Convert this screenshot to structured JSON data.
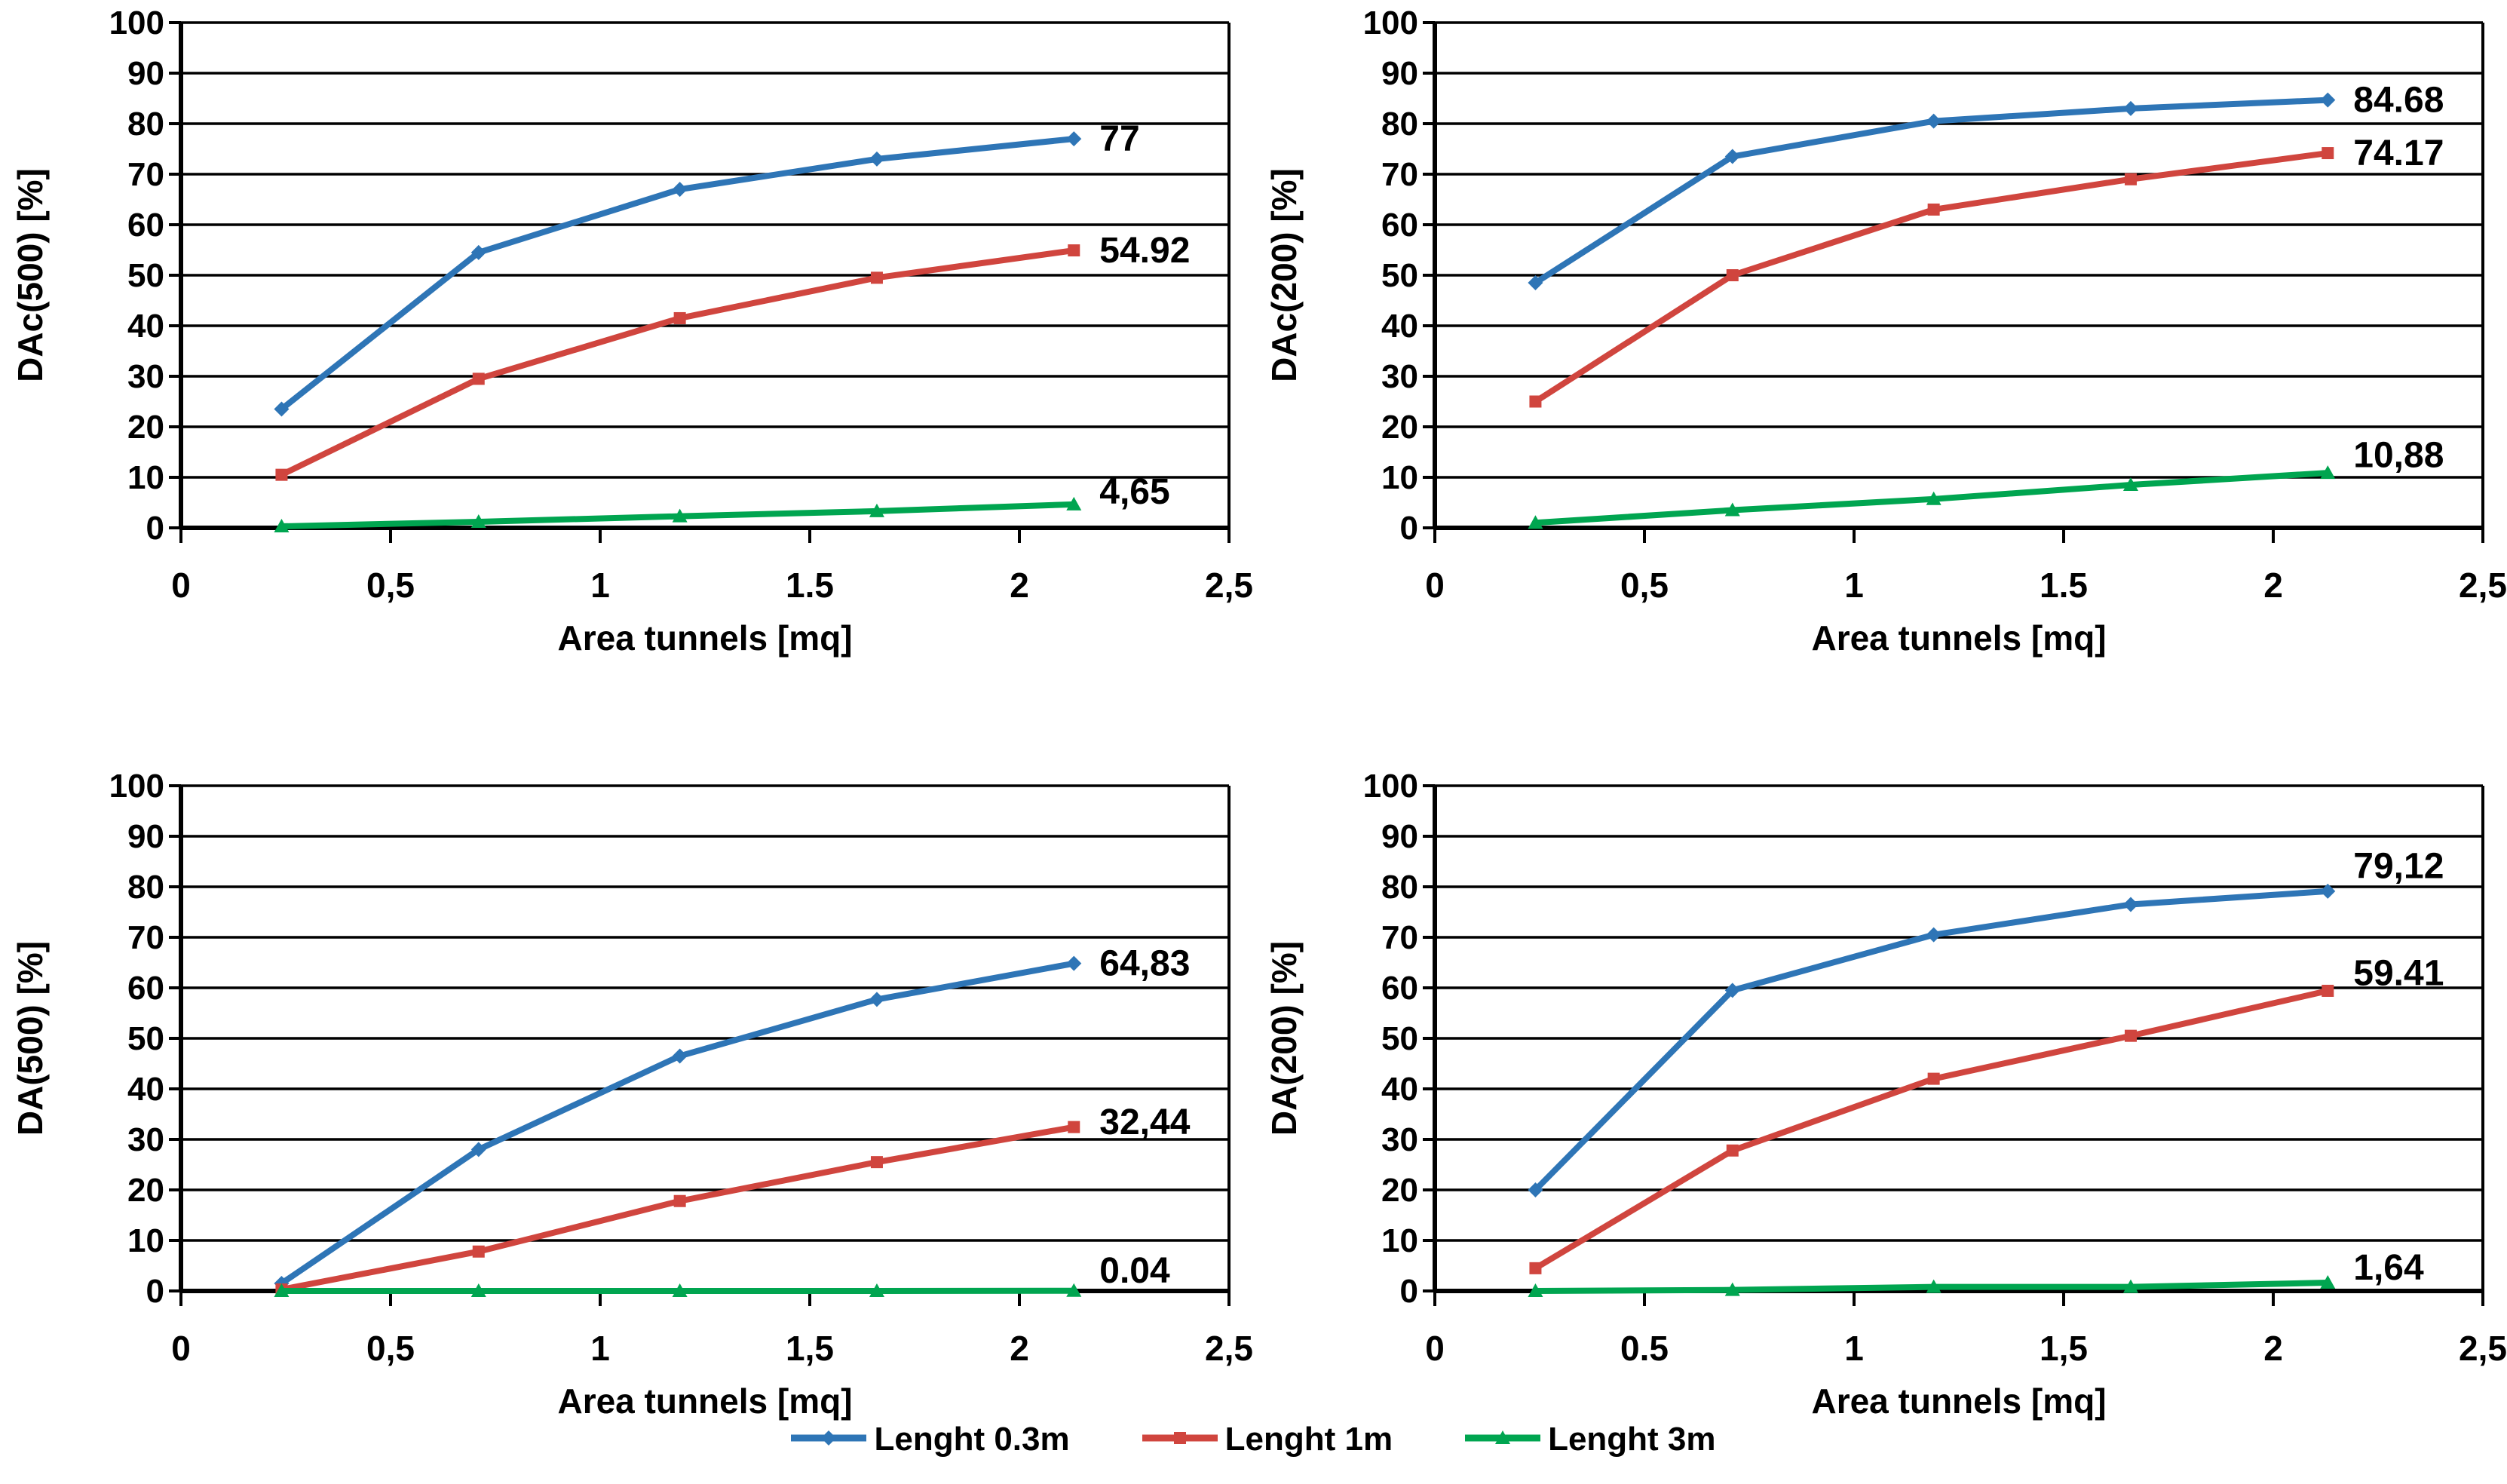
{
  "palette": {
    "blue": "#2E75B6",
    "red": "#D0453E",
    "green": "#00A550",
    "axis": "#000000",
    "grid": "#000000",
    "text": "#000000",
    "background": "#ffffff"
  },
  "legend": {
    "items": [
      {
        "label": "Lenght 0.3m",
        "color_key": "blue",
        "marker": "diamond"
      },
      {
        "label": "Lenght 1m",
        "color_key": "red",
        "marker": "square"
      },
      {
        "label": "Lenght 3m",
        "color_key": "green",
        "marker": "triangle"
      }
    ]
  },
  "chart_data": [
    {
      "type": "line",
      "name": "dac500",
      "ylabel": "DAc(500) [%]",
      "xlabel": "Area tunnels [mq]",
      "xlim": [
        0,
        2.5
      ],
      "ylim": [
        0,
        100
      ],
      "grid": "horizontal",
      "legend_position": "shared-bottom",
      "xtick_values": [
        0,
        0.5,
        1,
        1.5,
        2,
        2.5
      ],
      "xtick_labels": [
        "0",
        "0,5",
        "1",
        "1.5",
        "2",
        "2,5"
      ],
      "ytick_values": [
        0,
        10,
        20,
        30,
        40,
        50,
        60,
        70,
        80,
        90,
        100
      ],
      "ytick_labels": [
        "0",
        "10",
        "20",
        "30",
        "40",
        "50",
        "60",
        "70",
        "80",
        "90",
        "100"
      ],
      "x": [
        0.24,
        0.71,
        1.19,
        1.66,
        2.13
      ],
      "series": [
        {
          "name": "Lenght 0.3m",
          "color_key": "blue",
          "marker": "diamond",
          "values": [
            23.5,
            54.5,
            67.0,
            73.0,
            77.0
          ],
          "end_label": "77",
          "label_dy": 0
        },
        {
          "name": "Lenght 1m",
          "color_key": "red",
          "marker": "square",
          "values": [
            10.5,
            29.5,
            41.5,
            49.5,
            54.92
          ],
          "end_label": "54.92",
          "label_dy": 0
        },
        {
          "name": "Lenght 3m",
          "color_key": "green",
          "marker": "triangle",
          "values": [
            0.3,
            1.2,
            2.3,
            3.3,
            4.65
          ],
          "end_label": "4,65",
          "label_dy": 2.5
        }
      ]
    },
    {
      "type": "line",
      "name": "dac200",
      "ylabel": "DAc(200) [%]",
      "xlabel": "Area tunnels [mq]",
      "xlim": [
        0,
        2.5
      ],
      "ylim": [
        0,
        100
      ],
      "grid": "horizontal",
      "legend_position": "shared-bottom",
      "xtick_values": [
        0,
        0.5,
        1,
        1.5,
        2,
        2.5
      ],
      "xtick_labels": [
        "0",
        "0,5",
        "1",
        "1.5",
        "2",
        "2,5"
      ],
      "ytick_values": [
        0,
        10,
        20,
        30,
        40,
        50,
        60,
        70,
        80,
        90,
        100
      ],
      "ytick_labels": [
        "0",
        "10",
        "20",
        "30",
        "40",
        "50",
        "60",
        "70",
        "80",
        "90",
        "100"
      ],
      "x": [
        0.24,
        0.71,
        1.19,
        1.66,
        2.13
      ],
      "series": [
        {
          "name": "Lenght 0.3m",
          "color_key": "blue",
          "marker": "diamond",
          "values": [
            48.5,
            73.5,
            80.5,
            83.0,
            84.68
          ],
          "end_label": "84.68",
          "label_dy": 0
        },
        {
          "name": "Lenght 1m",
          "color_key": "red",
          "marker": "square",
          "values": [
            25.0,
            50.0,
            63.0,
            69.0,
            74.17
          ],
          "end_label": "74.17",
          "label_dy": 0
        },
        {
          "name": "Lenght 3m",
          "color_key": "green",
          "marker": "triangle",
          "values": [
            1.0,
            3.5,
            5.7,
            8.5,
            10.88
          ],
          "end_label": "10,88",
          "label_dy": 3.5
        }
      ]
    },
    {
      "type": "line",
      "name": "da500",
      "ylabel": "DA(500) [%]",
      "xlabel": "Area tunnels [mq]",
      "xlim": [
        0,
        2.5
      ],
      "ylim": [
        0,
        100
      ],
      "grid": "horizontal",
      "legend_position": "shared-bottom",
      "xtick_values": [
        0,
        0.5,
        1,
        1.5,
        2,
        2.5
      ],
      "xtick_labels": [
        "0",
        "0,5",
        "1",
        "1,5",
        "2",
        "2,5"
      ],
      "ytick_values": [
        0,
        10,
        20,
        30,
        40,
        50,
        60,
        70,
        80,
        90,
        100
      ],
      "ytick_labels": [
        "0",
        "10",
        "20",
        "30",
        "40",
        "50",
        "60",
        "70",
        "80",
        "90",
        "100"
      ],
      "x": [
        0.24,
        0.71,
        1.19,
        1.66,
        2.13
      ],
      "series": [
        {
          "name": "Lenght 0.3m",
          "color_key": "blue",
          "marker": "diamond",
          "values": [
            1.5,
            28.0,
            46.5,
            57.7,
            64.83
          ],
          "end_label": "64,83",
          "label_dy": 0
        },
        {
          "name": "Lenght 1m",
          "color_key": "red",
          "marker": "square",
          "values": [
            0.3,
            7.8,
            17.8,
            25.5,
            32.44
          ],
          "end_label": "32,44",
          "label_dy": 1
        },
        {
          "name": "Lenght 3m",
          "color_key": "green",
          "marker": "triangle",
          "values": [
            0,
            0,
            0,
            0,
            0.04
          ],
          "end_label": "0.04",
          "label_dy": 4
        }
      ]
    },
    {
      "type": "line",
      "name": "da200",
      "ylabel": "DA(200) [%]",
      "xlabel": "Area tunnels [mq]",
      "xlim": [
        0,
        2.5
      ],
      "ylim": [
        0,
        100
      ],
      "grid": "horizontal",
      "legend_position": "shared-bottom",
      "xtick_values": [
        0,
        0.5,
        1,
        1.5,
        2,
        2.5
      ],
      "xtick_labels": [
        "0",
        "0.5",
        "1",
        "1,5",
        "2",
        "2,5"
      ],
      "ytick_values": [
        0,
        10,
        20,
        30,
        40,
        50,
        60,
        70,
        80,
        90,
        100
      ],
      "ytick_labels": [
        "0",
        "10",
        "20",
        "30",
        "40",
        "50",
        "60",
        "70",
        "80",
        "90",
        "100"
      ],
      "x": [
        0.24,
        0.71,
        1.19,
        1.66,
        2.13
      ],
      "series": [
        {
          "name": "Lenght 0.3m",
          "color_key": "blue",
          "marker": "diamond",
          "values": [
            20.0,
            59.5,
            70.5,
            76.5,
            79.12
          ],
          "end_label": "79,12",
          "label_dy": 5
        },
        {
          "name": "Lenght 1m",
          "color_key": "red",
          "marker": "square",
          "values": [
            4.5,
            27.8,
            42.0,
            50.5,
            59.41
          ],
          "end_label": "59.41",
          "label_dy": 3.5
        },
        {
          "name": "Lenght 3m",
          "color_key": "green",
          "marker": "triangle",
          "values": [
            0,
            0.2,
            0.8,
            0.8,
            1.64
          ],
          "end_label": "1,64",
          "label_dy": 3
        }
      ]
    }
  ]
}
